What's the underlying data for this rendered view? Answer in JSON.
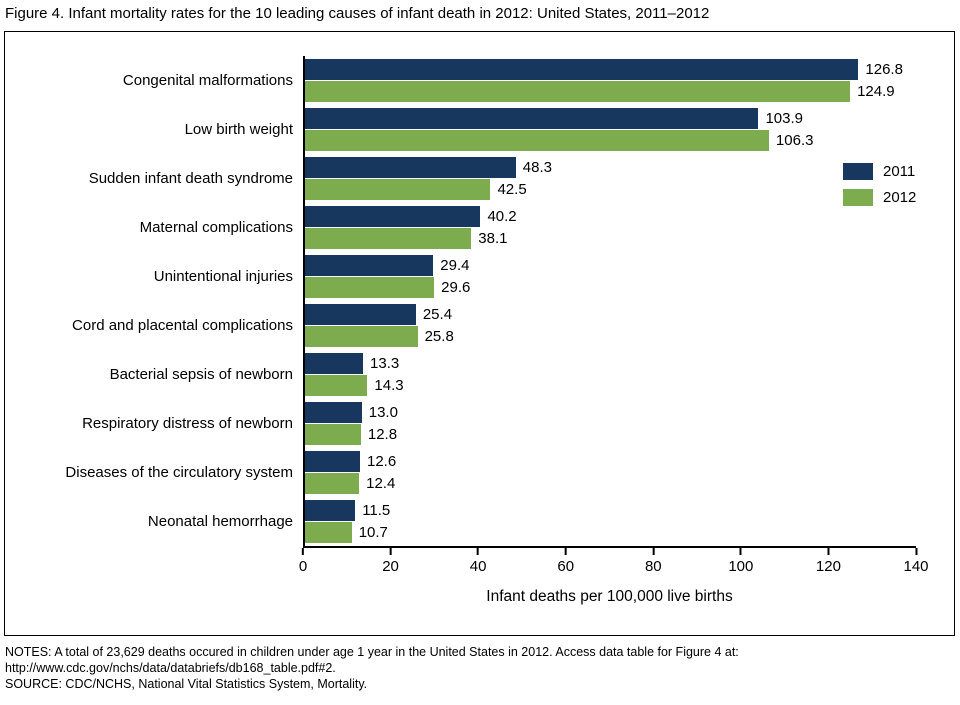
{
  "title": "Figure 4. Infant mortality rates for the 10 leading causes of infant death in 2012: United States, 2011–2012",
  "chart_data": {
    "type": "bar",
    "orientation": "horizontal",
    "title": "Figure 4. Infant mortality rates for the 10 leading causes of infant death in 2012: United States, 2011–2012",
    "categories": [
      "Congenital malformations",
      "Low birth weight",
      "Sudden infant death syndrome",
      "Maternal complications",
      "Unintentional injuries",
      "Cord and placental complications",
      "Bacterial sepsis of newborn",
      "Respiratory distress of newborn",
      "Diseases of the circulatory system",
      "Neonatal hemorrhage"
    ],
    "series": [
      {
        "name": "2011",
        "color": "#17375E",
        "values": [
          126.8,
          103.9,
          48.3,
          40.2,
          29.4,
          25.4,
          13.3,
          13.0,
          12.6,
          11.5
        ]
      },
      {
        "name": "2012",
        "color": "#7DAC4F",
        "values": [
          124.9,
          106.3,
          42.5,
          38.1,
          29.6,
          25.8,
          14.3,
          12.8,
          12.4,
          10.7
        ]
      }
    ],
    "xlabel": "Infant deaths per 100,000 live births",
    "ylabel": "",
    "xlim": [
      0,
      140
    ],
    "xticks": [
      0,
      20,
      40,
      60,
      80,
      100,
      120,
      140
    ],
    "grid": false,
    "legend_position": "right-inside",
    "value_labels": true,
    "value_label_decimals": 1
  },
  "notes": {
    "line1": "NOTES: A total of 23,629 deaths occured in children under age 1 year in the United States in 2012. Access data table for Figure 4 at:",
    "line2": "http://www.cdc.gov/nchs/data/databriefs/db168_table.pdf#2.",
    "line3": "SOURCE: CDC/NCHS, National Vital Statistics System, Mortality."
  }
}
